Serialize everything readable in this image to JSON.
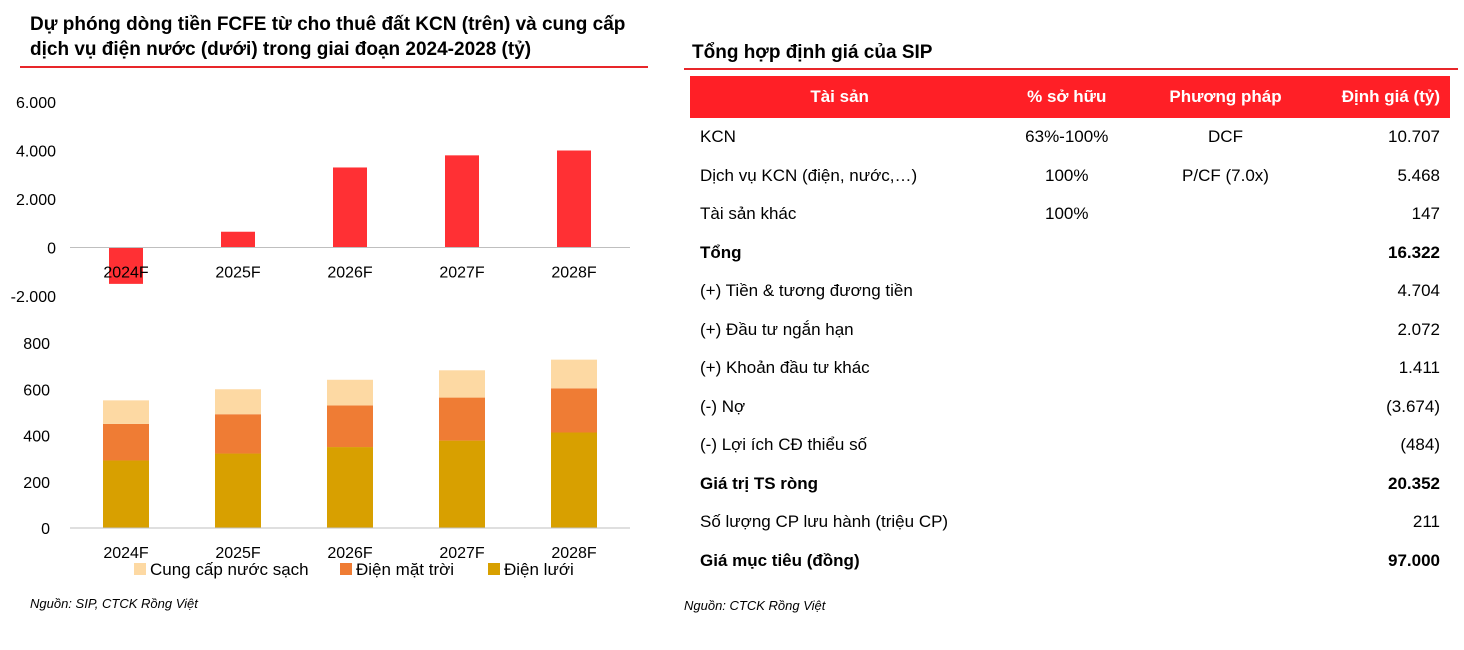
{
  "left": {
    "title": "Dự phóng dòng tiền FCFE từ cho thuê đất KCN (trên) và cung cấp dịch vụ điện nước (dưới) trong giai đoạn 2024-2028 (tỷ)",
    "source": "Nguồn: SIP, CTCK Rồng Việt"
  },
  "chart_data": [
    {
      "type": "bar",
      "title": "",
      "categories": [
        "2024F",
        "2025F",
        "2026F",
        "2027F",
        "2028F"
      ],
      "values": [
        -1500,
        650,
        3300,
        3800,
        4000
      ],
      "ylim": [
        -2000,
        6000
      ],
      "yticks": [
        6000,
        4000,
        2000,
        0,
        -2000
      ],
      "ytick_labels": [
        "6.000",
        "4.000",
        "2.000",
        "0",
        "-2.000"
      ],
      "grid": false,
      "color": "#ff3034"
    },
    {
      "type": "bar",
      "stacked": true,
      "title": "",
      "categories": [
        "2024F",
        "2025F",
        "2026F",
        "2027F",
        "2028F"
      ],
      "series": [
        {
          "name": "Điện lưới",
          "values": [
            292,
            322,
            350,
            378,
            413
          ],
          "color": "#d8a000"
        },
        {
          "name": "Điện mặt trời",
          "values": [
            158,
            170,
            180,
            186,
            191
          ],
          "color": "#ef7c34"
        },
        {
          "name": "Cung cấp nước sạch",
          "values": [
            102,
            108,
            111,
            118,
            124
          ],
          "color": "#fdd9a3"
        }
      ],
      "ylim": [
        0,
        800
      ],
      "yticks": [
        800,
        600,
        400,
        200,
        0
      ],
      "ytick_labels": [
        "800",
        "600",
        "400",
        "200",
        "0"
      ],
      "legend": {
        "position": "bottom",
        "order": [
          "Cung cấp nước sạch",
          "Điện mặt trời",
          "Điện lưới"
        ]
      },
      "grid": false
    }
  ],
  "right": {
    "title": "Tổng hợp định giá của SIP",
    "source": "Nguồn: CTCK Rồng Việt",
    "table": {
      "headers": [
        "Tài sản",
        "% sở hữu",
        "Phương pháp",
        "Định giá (tỷ)"
      ],
      "rows": [
        {
          "cells": [
            "KCN",
            "63%-100%",
            "DCF",
            "10.707"
          ],
          "bold": false
        },
        {
          "cells": [
            "Dịch vụ KCN (điện, nước,…)",
            "100%",
            "P/CF (7.0x)",
            "5.468"
          ],
          "bold": false
        },
        {
          "cells": [
            "Tài sản khác",
            "100%",
            "",
            "147"
          ],
          "bold": false
        },
        {
          "cells": [
            "Tổng",
            "",
            "",
            "16.322"
          ],
          "bold": true
        },
        {
          "cells": [
            "(+) Tiền & tương đương tiền",
            "",
            "",
            "4.704"
          ],
          "bold": false
        },
        {
          "cells": [
            "(+) Đầu tư ngắn hạn",
            "",
            "",
            "2.072"
          ],
          "bold": false
        },
        {
          "cells": [
            "(+) Khoản đầu tư khác",
            "",
            "",
            "1.411"
          ],
          "bold": false
        },
        {
          "cells": [
            "(-) Nợ",
            "",
            "",
            "(3.674)"
          ],
          "bold": false
        },
        {
          "cells": [
            "(-) Lợi ích CĐ thiểu số",
            "",
            "",
            "(484)"
          ],
          "bold": false
        },
        {
          "cells": [
            "Giá trị TS ròng",
            "",
            "",
            "20.352"
          ],
          "bold": true
        },
        {
          "cells": [
            "Số lượng CP lưu hành (triệu CP)",
            "",
            "",
            "211"
          ],
          "bold": false
        },
        {
          "cells": [
            "Giá mục tiêu (đồng)",
            "",
            "",
            "97.000"
          ],
          "bold": true
        }
      ]
    }
  }
}
